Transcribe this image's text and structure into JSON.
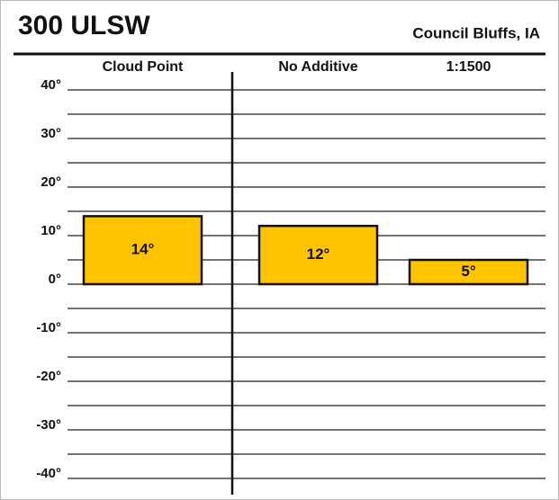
{
  "chart_data": {
    "type": "bar",
    "title": "300 ULSW",
    "subtitle": "Council Bluffs, IA",
    "categories": [
      "Cloud Point",
      "No Additive",
      "1:1500"
    ],
    "values": [
      14,
      12,
      5
    ],
    "value_labels": [
      "14°",
      "12°",
      "5°"
    ],
    "color": "#ffc400",
    "ylim": [
      -40,
      40
    ],
    "yticks": [
      {
        "value": 40,
        "label": "40°"
      },
      {
        "value": 30,
        "label": "30°"
      },
      {
        "value": 20,
        "label": "20°"
      },
      {
        "value": 10,
        "label": "10°"
      },
      {
        "value": 0,
        "label": "0°"
      },
      {
        "value": -10,
        "label": "-10°"
      },
      {
        "value": -20,
        "label": "-20°"
      },
      {
        "value": -30,
        "label": "-30°"
      },
      {
        "value": -40,
        "label": "-40°"
      }
    ],
    "minor_yticks": [
      35,
      25,
      15,
      5,
      -5,
      -15,
      -25,
      -35
    ],
    "grid": true
  }
}
